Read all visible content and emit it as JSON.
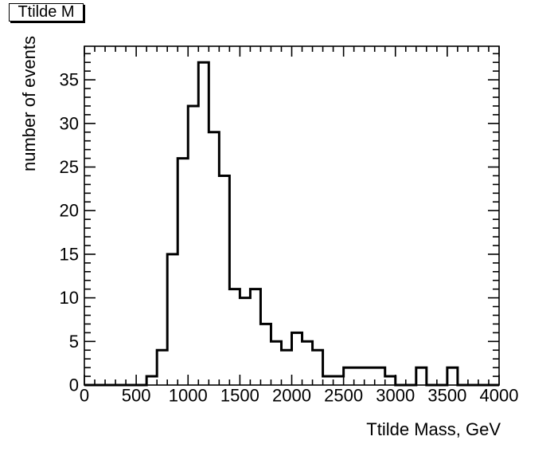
{
  "chart_data": {
    "type": "bar",
    "subtype": "step-outline-histogram",
    "title": "Ttilde M",
    "xlabel": "Ttilde Mass, GeV",
    "ylabel": "number of events",
    "xlim": [
      0,
      4000
    ],
    "ylim": [
      0,
      38.85
    ],
    "bin_start": 0,
    "bin_width": 100,
    "values": [
      0,
      0,
      0,
      0,
      0,
      0,
      1,
      4,
      15,
      26,
      32,
      37,
      29,
      24,
      11,
      10,
      11,
      7,
      5,
      4,
      6,
      5,
      4,
      1,
      1,
      2,
      2,
      2,
      2,
      1,
      0,
      0,
      2,
      0,
      0,
      2,
      0,
      0,
      0,
      0
    ],
    "x_major_tick_step": 500,
    "x_minor_tick_step": 100,
    "y_major_tick_step": 5,
    "y_minor_tick_step": 1,
    "x_tick_labels": [
      "0",
      "500",
      "1000",
      "1500",
      "2000",
      "2500",
      "3000",
      "3500",
      "4000"
    ],
    "y_tick_labels": [
      "0",
      "5",
      "10",
      "15",
      "20",
      "25",
      "30",
      "35"
    ],
    "grid": false,
    "legend": null,
    "line_color": "#000000",
    "background_color": "#ffffff"
  }
}
